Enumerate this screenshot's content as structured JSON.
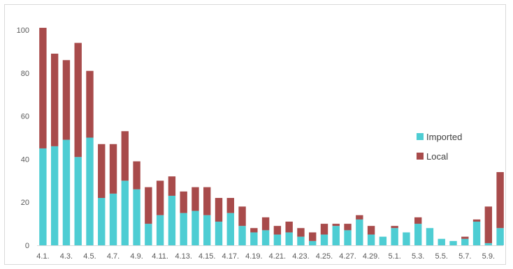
{
  "chart_data": {
    "type": "bar",
    "stacked": true,
    "title": "",
    "xlabel": "",
    "ylabel": "",
    "ylim": [
      0,
      100
    ],
    "yticks": [
      0,
      20,
      40,
      60,
      80,
      100
    ],
    "grid": false,
    "legend_position": "right",
    "categories": [
      "4.1.",
      "4.2.",
      "4.3.",
      "4.4.",
      "4.5.",
      "4.6.",
      "4.7.",
      "4.8.",
      "4.9.",
      "4.10.",
      "4.11.",
      "4.12.",
      "4.13.",
      "4.14.",
      "4.15.",
      "4.16.",
      "4.17.",
      "4.18.",
      "4.19.",
      "4.20.",
      "4.21.",
      "4.22.",
      "4.23.",
      "4.24.",
      "4.25.",
      "4.26.",
      "4.27.",
      "4.28.",
      "4.29.",
      "4.30.",
      "5.1.",
      "5.2.",
      "5.3.",
      "5.4.",
      "5.5.",
      "5.6.",
      "5.7.",
      "5.8.",
      "5.9.",
      "5.10."
    ],
    "tick_labels": [
      "4.1.",
      "",
      "4.3.",
      "",
      "4.5.",
      "",
      "4.7.",
      "",
      "4.9.",
      "",
      "4.11.",
      "",
      "4.13.",
      "",
      "4.15.",
      "",
      "4.17.",
      "",
      "4.19.",
      "",
      "4.21.",
      "",
      "4.23.",
      "",
      "4.25.",
      "",
      "4.27.",
      "",
      "4.29.",
      "",
      "5.1.",
      "",
      "5.3.",
      "",
      "5.5.",
      "",
      "5.7.",
      "",
      "5.9.",
      ""
    ],
    "series": [
      {
        "name": "Imported",
        "color": "#4ECDD3",
        "values": [
          45,
          46,
          49,
          41,
          50,
          22,
          24,
          30,
          26,
          10,
          14,
          23,
          15,
          16,
          14,
          11,
          15,
          9,
          6,
          7,
          5,
          6,
          4,
          2,
          5,
          9,
          7,
          12,
          5,
          4,
          8,
          6,
          10,
          8,
          3,
          2,
          3,
          11,
          1,
          8
        ]
      },
      {
        "name": "Local",
        "color": "#A84B4B",
        "values": [
          56,
          43,
          37,
          53,
          31,
          25,
          23,
          23,
          13,
          17,
          16,
          9,
          10,
          11,
          13,
          11,
          7,
          9,
          2,
          6,
          4,
          5,
          4,
          4,
          5,
          1,
          3,
          2,
          4,
          0,
          1,
          0,
          3,
          0,
          0,
          0,
          1,
          1,
          17,
          26
        ]
      }
    ]
  }
}
